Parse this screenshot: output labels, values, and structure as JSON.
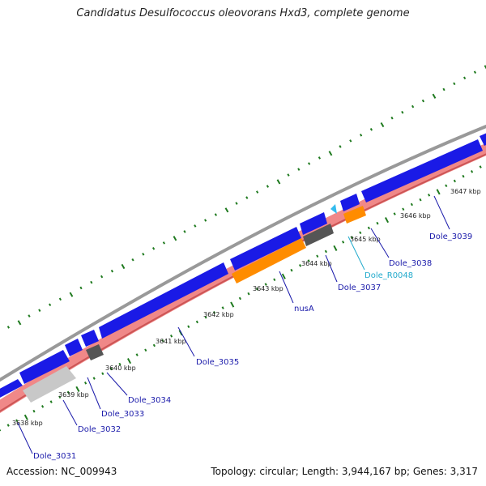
{
  "title": "Candidatus Desulfococcus oleovorans Hxd3, complete genome",
  "footer": {
    "accession": "Accession: NC_009943",
    "summary": "Topology: circular; Length: 3,944,167 bp; Genes: 3,317"
  },
  "colors": {
    "forward_cds": "#1a1ae6",
    "reverse_cds": "#f08888",
    "rna": "#ff8c00",
    "pseudo_dark": "#666666",
    "pseudo_light": "#c8c8c8",
    "trna": "#33bbee",
    "backbone": "#999999",
    "tick": "#1f7a1f",
    "label_blue": "#1a1aaa",
    "label_cyan": "#22aacc"
  },
  "ticks": [
    {
      "label": "3638 kbp"
    },
    {
      "label": "3639 kbp"
    },
    {
      "label": "3640 kbp"
    },
    {
      "label": "3641 kbp"
    },
    {
      "label": "3642 kbp"
    },
    {
      "label": "3643 kbp"
    },
    {
      "label": "3644 kbp"
    },
    {
      "label": "3645 kbp"
    },
    {
      "label": "3646 kbp"
    },
    {
      "label": "3647 kbp"
    }
  ],
  "genes": [
    {
      "label": "Dole_3031",
      "color": "label_blue"
    },
    {
      "label": "Dole_3032",
      "color": "label_blue"
    },
    {
      "label": "Dole_3033",
      "color": "label_blue"
    },
    {
      "label": "Dole_3034",
      "color": "label_blue"
    },
    {
      "label": "Dole_3035",
      "color": "label_blue"
    },
    {
      "label": "nusA",
      "color": "label_blue"
    },
    {
      "label": "Dole_3037",
      "color": "label_blue"
    },
    {
      "label": "Dole_R0048",
      "color": "label_cyan"
    },
    {
      "label": "Dole_3038",
      "color": "label_blue"
    },
    {
      "label": "Dole_3039",
      "color": "label_blue"
    }
  ]
}
